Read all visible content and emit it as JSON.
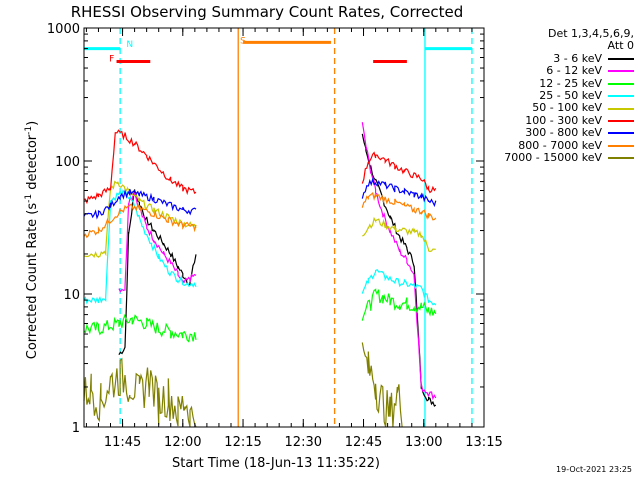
{
  "chart_data": {
    "type": "line",
    "title": "RHESSI Observing Summary Count Rates, Corrected",
    "xlabel": "Start Time (18-Jun-13 11:35:22)",
    "ylabel": "Corrected Count Rate (s",
    "ylabel_sup1": "-1",
    "ylabel_mid": " detector",
    "ylabel_sup2": "-1",
    "ylabel_end": ")",
    "yscale": "log",
    "ylim": [
      1,
      1000
    ],
    "xlim": [
      11.59,
      13.25
    ],
    "yticks": [
      {
        "v": 1,
        "label": "1"
      },
      {
        "v": 10,
        "label": "10"
      },
      {
        "v": 100,
        "label": "100"
      },
      {
        "v": 1000,
        "label": "1000"
      }
    ],
    "xticks": [
      {
        "v": 11.75,
        "label": "11:45"
      },
      {
        "v": 12.0,
        "label": "12:00"
      },
      {
        "v": 12.25,
        "label": "12:15"
      },
      {
        "v": 12.5,
        "label": "12:30"
      },
      {
        "v": 12.75,
        "label": "12:45"
      },
      {
        "v": 13.0,
        "label": "13:00"
      },
      {
        "v": 13.25,
        "label": "13:15"
      }
    ],
    "legend_header": [
      "Det 1,3,4,5,6,9,",
      "Att 0"
    ],
    "series": [
      {
        "name": "3 - 6 keV",
        "color": "#000000",
        "points": [
          [
            11.735,
            3.5
          ],
          [
            11.76,
            4
          ],
          [
            11.775,
            28
          ],
          [
            11.8,
            60
          ],
          [
            11.82,
            48
          ],
          [
            11.85,
            36
          ],
          [
            11.88,
            30
          ],
          [
            11.92,
            24
          ],
          [
            11.95,
            20
          ],
          [
            11.98,
            16
          ],
          [
            12.0,
            14
          ],
          [
            12.03,
            12
          ],
          [
            12.055,
            20
          ],
          [
            12.745,
            160
          ],
          [
            12.76,
            120
          ],
          [
            12.78,
            90
          ],
          [
            12.8,
            70
          ],
          [
            12.83,
            52
          ],
          [
            12.86,
            38
          ],
          [
            12.9,
            27
          ],
          [
            12.93,
            22
          ],
          [
            12.96,
            17
          ],
          [
            12.99,
            2
          ],
          [
            13.02,
            1.6
          ],
          [
            13.05,
            1.5
          ]
        ]
      },
      {
        "name": "6 - 12 keV",
        "color": "#ff00ff",
        "points": [
          [
            11.735,
            11
          ],
          [
            11.76,
            11
          ],
          [
            11.775,
            50
          ],
          [
            11.8,
            58
          ],
          [
            11.82,
            44
          ],
          [
            11.85,
            32
          ],
          [
            11.88,
            26
          ],
          [
            11.92,
            20
          ],
          [
            11.95,
            17
          ],
          [
            11.98,
            14
          ],
          [
            12.0,
            12
          ],
          [
            12.03,
            13
          ],
          [
            12.055,
            14
          ],
          [
            12.745,
            190
          ],
          [
            12.76,
            130
          ],
          [
            12.78,
            85
          ],
          [
            12.8,
            60
          ],
          [
            12.83,
            40
          ],
          [
            12.86,
            30
          ],
          [
            12.9,
            21
          ],
          [
            12.93,
            18
          ],
          [
            12.96,
            14
          ],
          [
            12.99,
            2
          ],
          [
            13.02,
            1.8
          ],
          [
            13.05,
            1.7
          ]
        ]
      },
      {
        "name": "12 - 25 keV",
        "color": "#00ff00",
        "points": [
          [
            11.59,
            5.5
          ],
          [
            11.65,
            5.5
          ],
          [
            11.735,
            6
          ],
          [
            11.79,
            6.5
          ],
          [
            11.85,
            6
          ],
          [
            11.9,
            5.5
          ],
          [
            11.95,
            5.2
          ],
          [
            12.0,
            5
          ],
          [
            12.055,
            5
          ],
          [
            12.745,
            7
          ],
          [
            12.78,
            8.5
          ],
          [
            12.8,
            10
          ],
          [
            12.83,
            9.5
          ],
          [
            12.86,
            9
          ],
          [
            12.9,
            8.5
          ],
          [
            12.93,
            8.5
          ],
          [
            12.96,
            8.2
          ],
          [
            12.99,
            8
          ],
          [
            13.02,
            7.5
          ],
          [
            13.05,
            7.2
          ]
        ]
      },
      {
        "name": "25 - 50 keV",
        "color": "#00ffff",
        "points": [
          [
            11.59,
            9
          ],
          [
            11.65,
            9
          ],
          [
            11.68,
            9.5
          ],
          [
            11.7,
            50
          ],
          [
            11.74,
            58
          ],
          [
            11.77,
            55
          ],
          [
            11.8,
            46
          ],
          [
            11.83,
            33
          ],
          [
            11.87,
            24
          ],
          [
            11.9,
            19
          ],
          [
            11.94,
            15
          ],
          [
            11.98,
            13
          ],
          [
            12.02,
            12
          ],
          [
            12.055,
            12
          ],
          [
            12.745,
            10
          ],
          [
            12.77,
            12.5
          ],
          [
            12.8,
            15
          ],
          [
            12.84,
            13.5
          ],
          [
            12.88,
            12.5
          ],
          [
            12.92,
            12
          ],
          [
            12.96,
            11.5
          ],
          [
            12.99,
            11
          ],
          [
            13.02,
            9
          ],
          [
            13.05,
            8.5
          ]
        ]
      },
      {
        "name": "50 - 100 keV",
        "color": "#c8c800",
        "points": [
          [
            11.59,
            20
          ],
          [
            11.65,
            20
          ],
          [
            11.68,
            21
          ],
          [
            11.7,
            62
          ],
          [
            11.73,
            70
          ],
          [
            11.77,
            60
          ],
          [
            11.82,
            50
          ],
          [
            11.88,
            43
          ],
          [
            11.94,
            38
          ],
          [
            12.0,
            34
          ],
          [
            12.055,
            32
          ],
          [
            12.745,
            28
          ],
          [
            12.77,
            32
          ],
          [
            12.8,
            36
          ],
          [
            12.84,
            33
          ],
          [
            12.88,
            31
          ],
          [
            12.92,
            30
          ],
          [
            12.96,
            29
          ],
          [
            12.99,
            28
          ],
          [
            13.02,
            22
          ],
          [
            13.05,
            21
          ]
        ]
      },
      {
        "name": "100 - 300 keV",
        "color": "#ff0000",
        "points": [
          [
            11.59,
            50
          ],
          [
            11.65,
            55
          ],
          [
            11.7,
            62
          ],
          [
            11.72,
            165
          ],
          [
            11.76,
            155
          ],
          [
            11.8,
            135
          ],
          [
            11.85,
            110
          ],
          [
            11.9,
            88
          ],
          [
            11.95,
            72
          ],
          [
            12.0,
            62
          ],
          [
            12.055,
            58
          ],
          [
            12.745,
            70
          ],
          [
            12.77,
            100
          ],
          [
            12.8,
            112
          ],
          [
            12.84,
            102
          ],
          [
            12.88,
            92
          ],
          [
            12.92,
            84
          ],
          [
            12.96,
            78
          ],
          [
            12.99,
            74
          ],
          [
            13.02,
            62
          ],
          [
            13.05,
            60
          ]
        ]
      },
      {
        "name": "300 - 800 keV",
        "color": "#0000ff",
        "points": [
          [
            11.59,
            38
          ],
          [
            11.65,
            40
          ],
          [
            11.7,
            46
          ],
          [
            11.74,
            55
          ],
          [
            11.78,
            58
          ],
          [
            11.82,
            56
          ],
          [
            11.88,
            52
          ],
          [
            11.94,
            47
          ],
          [
            12.0,
            43
          ],
          [
            12.055,
            42
          ],
          [
            12.745,
            55
          ],
          [
            12.77,
            68
          ],
          [
            12.8,
            70
          ],
          [
            12.84,
            66
          ],
          [
            12.88,
            62
          ],
          [
            12.92,
            59
          ],
          [
            12.96,
            56
          ],
          [
            12.99,
            54
          ],
          [
            13.02,
            50
          ],
          [
            13.05,
            48
          ]
        ]
      },
      {
        "name": "800 - 7000 keV",
        "color": "#ff8000",
        "points": [
          [
            11.59,
            28
          ],
          [
            11.65,
            30
          ],
          [
            11.7,
            36
          ],
          [
            11.74,
            42
          ],
          [
            11.78,
            45
          ],
          [
            11.82,
            44
          ],
          [
            11.88,
            40
          ],
          [
            11.94,
            36
          ],
          [
            12.0,
            33
          ],
          [
            12.055,
            32
          ],
          [
            12.745,
            45
          ],
          [
            12.77,
            54
          ],
          [
            12.8,
            55
          ],
          [
            12.84,
            52
          ],
          [
            12.88,
            49
          ],
          [
            12.92,
            46
          ],
          [
            12.96,
            43
          ],
          [
            12.99,
            42
          ],
          [
            13.02,
            39
          ],
          [
            13.05,
            37
          ]
        ]
      },
      {
        "name": "7000 - 15000 keV",
        "color": "#808000",
        "points": [
          [
            11.59,
            1.8
          ],
          [
            11.62,
            2.0
          ],
          [
            11.66,
            1.6
          ],
          [
            11.7,
            2.2
          ],
          [
            11.74,
            2.5
          ],
          [
            11.78,
            2.2
          ],
          [
            11.82,
            1.8
          ],
          [
            11.86,
            2.4
          ],
          [
            11.9,
            1.6
          ],
          [
            11.94,
            1.8
          ],
          [
            11.98,
            1.3
          ],
          [
            12.01,
            1.6
          ],
          [
            12.03,
            1.2
          ],
          [
            12.055,
            1.3
          ],
          [
            12.745,
            3.5
          ],
          [
            12.77,
            2.8
          ],
          [
            12.8,
            2.2
          ],
          [
            12.83,
            1.6
          ],
          [
            12.86,
            1.3
          ],
          [
            12.89,
            1.8
          ],
          [
            12.91,
            1.4
          ]
        ]
      }
    ],
    "annotations": [
      {
        "label": "F",
        "color": "#ff0000",
        "x": 11.705,
        "y": 600
      },
      {
        "label": "N",
        "color": "#00ffff",
        "x": 11.78,
        "y": 770
      },
      {
        "label": "S",
        "color": "#ff8000",
        "x": 12.25,
        "y": 820
      }
    ],
    "bars": [
      {
        "color": "#ff0000",
        "x0": 11.725,
        "x1": 11.865,
        "y": 560
      },
      {
        "color": "#ff0000",
        "x0": 12.79,
        "x1": 12.93,
        "y": 560
      },
      {
        "color": "#ff8000",
        "x0": 12.25,
        "x1": 12.615,
        "y": 780
      },
      {
        "color": "#00ffff",
        "x0": 11.59,
        "x1": 11.74,
        "y": 700
      },
      {
        "color": "#00ffff",
        "x0": 13.005,
        "x1": 13.2,
        "y": 700
      }
    ],
    "vlines": [
      {
        "color": "#00ffff",
        "x": 11.74,
        "style": "dashed"
      },
      {
        "color": "#00ffff",
        "x": 13.005,
        "style": "solid"
      },
      {
        "color": "#00ffff",
        "x": 13.2,
        "style": "dashed"
      },
      {
        "color": "#ff8000",
        "x": 12.23,
        "style": "solid"
      },
      {
        "color": "#ff8000",
        "x": 12.63,
        "style": "dashed"
      }
    ],
    "timestamp": "19-Oct-2021 23:25"
  }
}
